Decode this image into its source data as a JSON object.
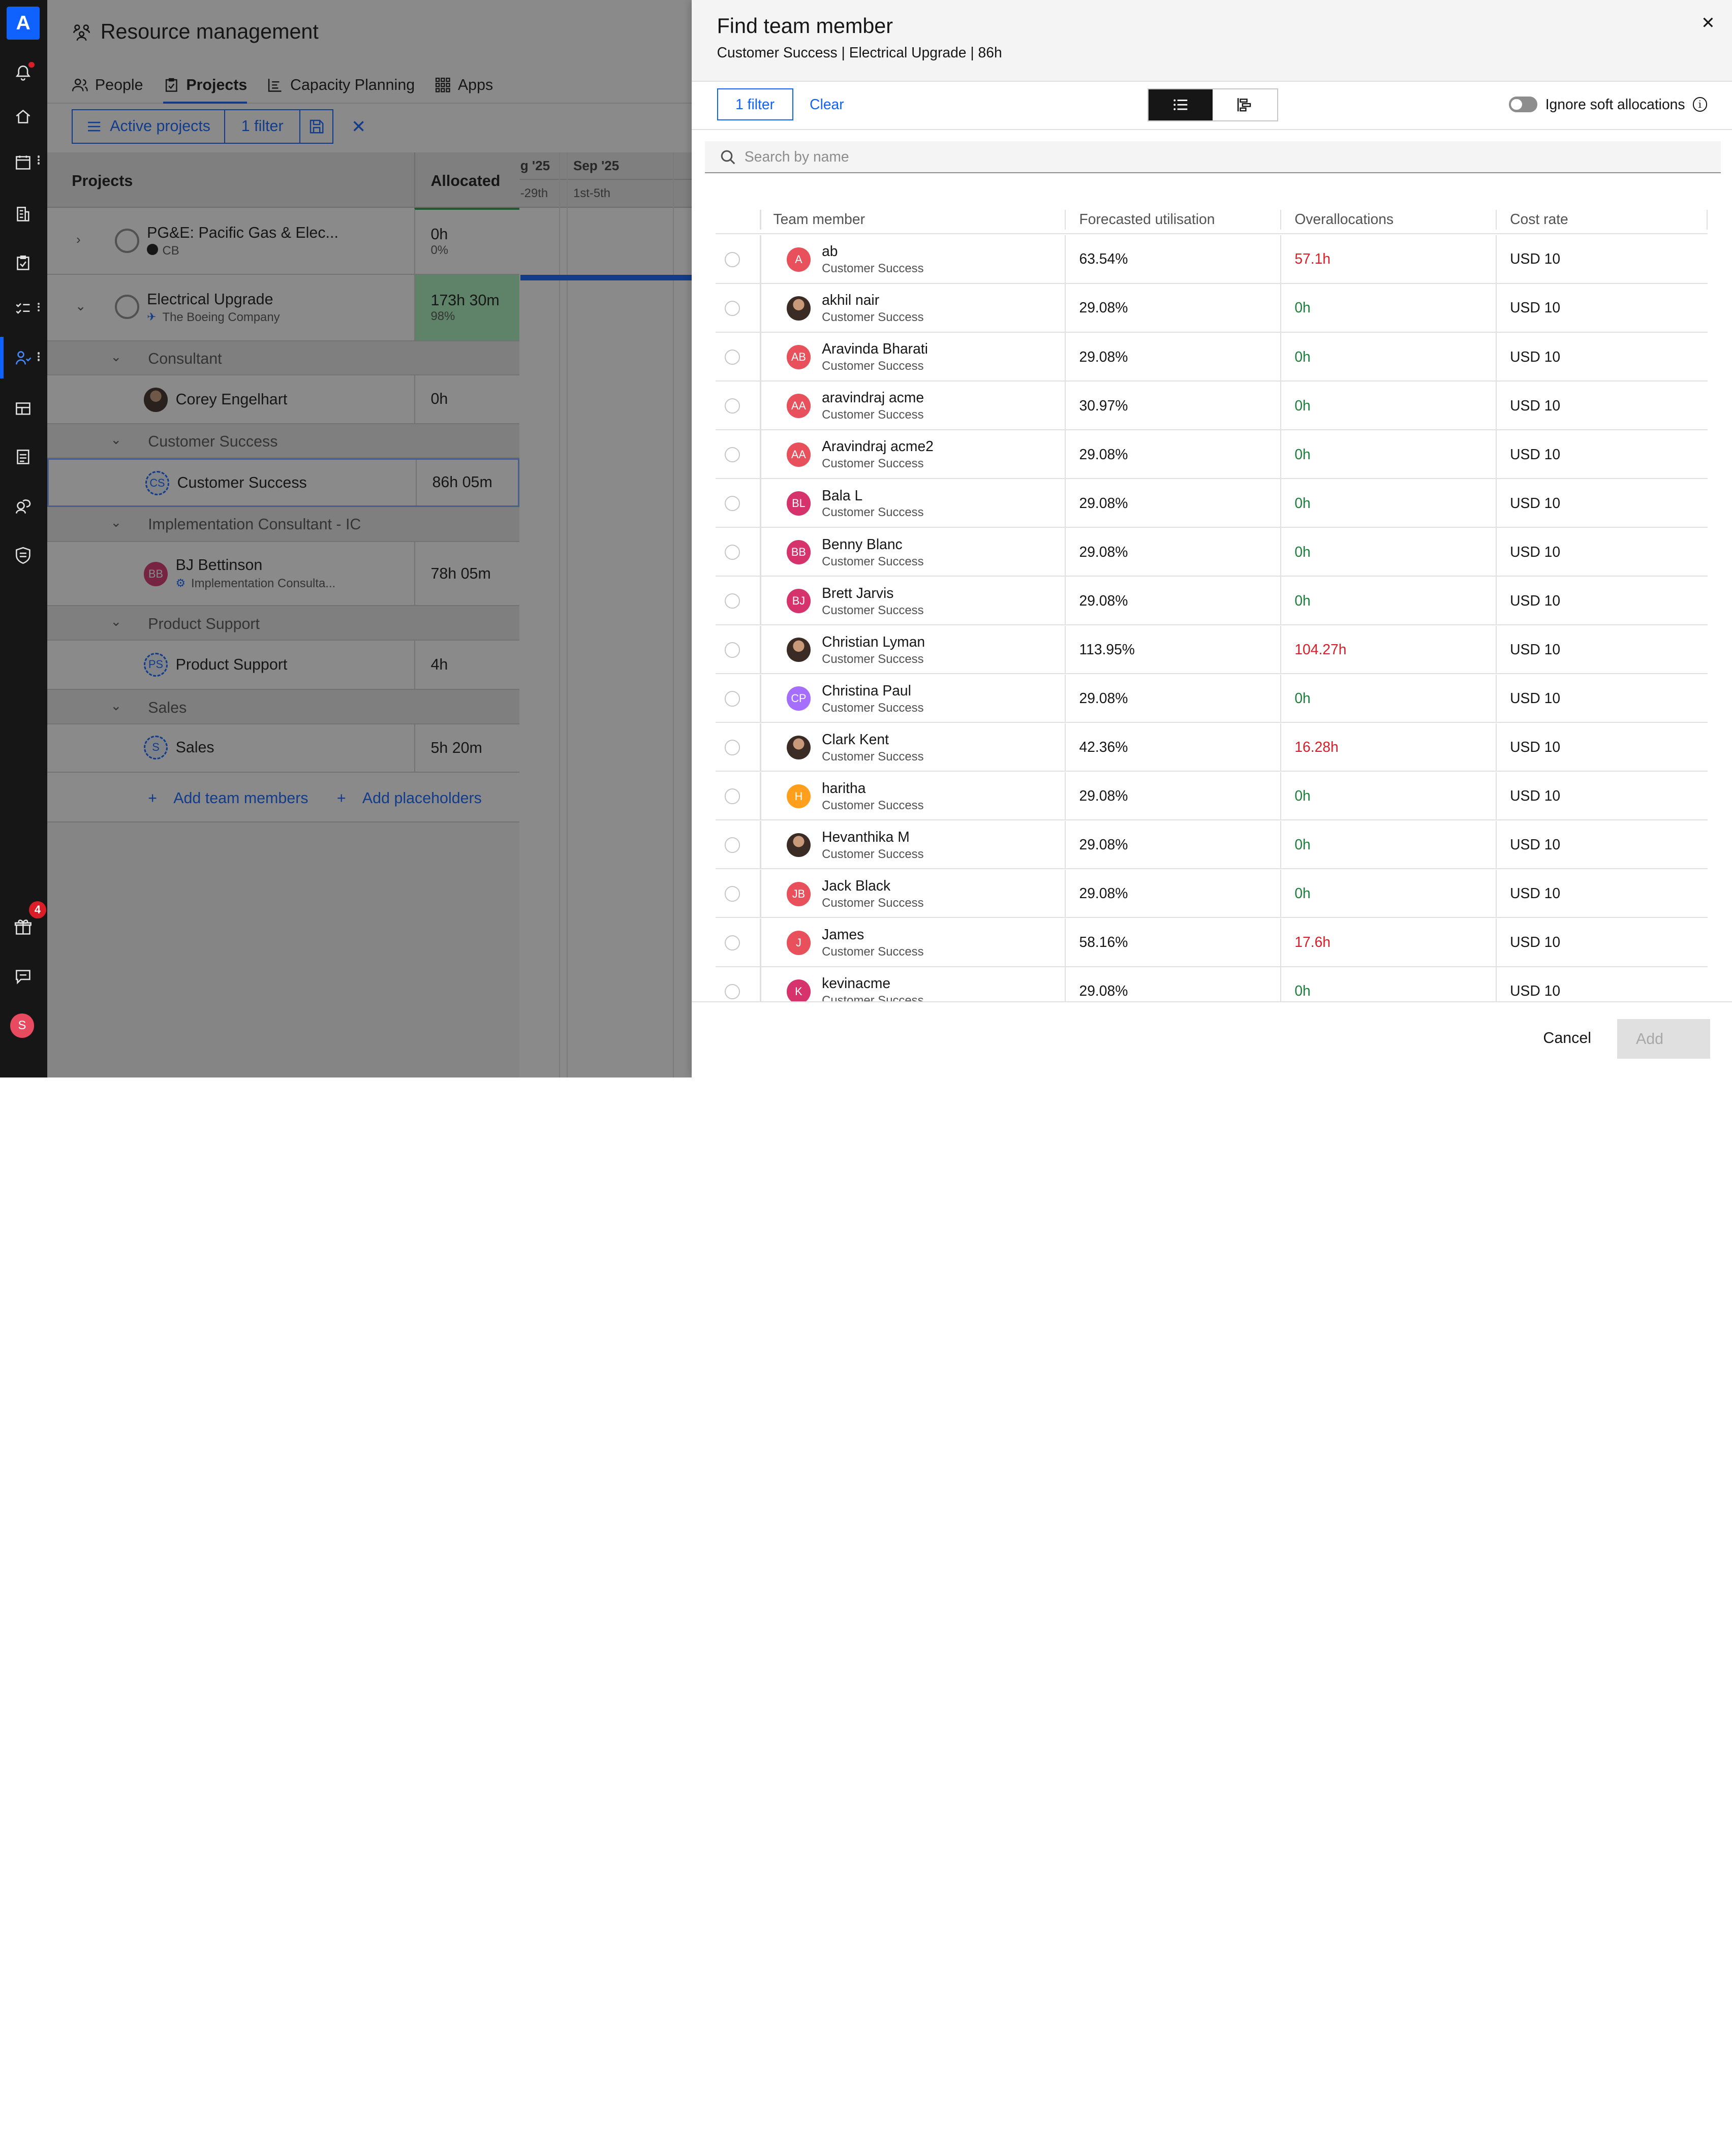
{
  "app": {
    "logo_letter": "A",
    "title": "Resource management",
    "tabs": [
      {
        "label": "People",
        "icon": "people-icon"
      },
      {
        "label": "Projects",
        "icon": "clipboard-icon"
      },
      {
        "label": "Capacity Planning",
        "icon": "capacity-icon"
      },
      {
        "label": "Apps",
        "icon": "apps-grid-icon"
      }
    ],
    "active_tab": "Projects",
    "toolbar": {
      "active_projects_label": "Active projects",
      "filter_label": "1 filter"
    },
    "grid": {
      "projects_header": "Projects",
      "allocated_header": "Allocated",
      "months": [
        "g '25",
        "Sep '25"
      ],
      "ranges": [
        "-29th",
        "1st-5th"
      ],
      "rows": [
        {
          "name": "PG&E: Pacific Gas & Elec...",
          "client": "CB",
          "alloc": "0h",
          "pct": "0%"
        },
        {
          "name": "Electrical Upgrade",
          "client": "The Boeing Company",
          "alloc": "173h 30m",
          "pct": "98%"
        },
        {
          "group": "Consultant"
        },
        {
          "name": "Corey Engelhart",
          "alloc": "0h"
        },
        {
          "group": "Customer Success"
        },
        {
          "name": "Customer Success",
          "initials": "CS",
          "alloc": "86h 05m"
        },
        {
          "group": "Implementation Consultant - IC"
        },
        {
          "name": "BJ Bettinson",
          "sub": "Implementation Consulta...",
          "initials": "BB",
          "alloc": "78h 05m"
        },
        {
          "group": "Product Support"
        },
        {
          "name": "Product Support",
          "initials": "PS",
          "alloc": "4h"
        },
        {
          "group": "Sales"
        },
        {
          "name": "Sales",
          "initials": "S",
          "alloc": "5h 20m"
        }
      ],
      "add_team_members": "Add team members",
      "add_placeholders": "Add placeholders"
    },
    "gift_badge_count": "4",
    "user_initial": "S"
  },
  "panel": {
    "title": "Find team member",
    "subtitle": "Customer Success | Electrical Upgrade | 86h",
    "filter_button": "1 filter",
    "clear_button": "Clear",
    "ignore_soft_label": "Ignore soft allocations",
    "search_placeholder": "Search by name",
    "columns": [
      "Team member",
      "Forecasted utilisation",
      "Overallocations",
      "Cost rate"
    ],
    "members": [
      {
        "name": "ab",
        "role": "Customer Success",
        "initials": "A",
        "avatar_color": "#e8505b",
        "util": "63.54%",
        "over": "57.1h",
        "over_state": "red",
        "cost": "USD 10"
      },
      {
        "name": "akhil nair",
        "role": "Customer Success",
        "photo": true,
        "util": "29.08%",
        "over": "0h",
        "over_state": "green",
        "cost": "USD 10"
      },
      {
        "name": "Aravinda Bharati",
        "role": "Customer Success",
        "initials": "AB",
        "avatar_color": "#e8505b",
        "util": "29.08%",
        "over": "0h",
        "over_state": "green",
        "cost": "USD 10"
      },
      {
        "name": "aravindraj acme",
        "role": "Customer Success",
        "initials": "AA",
        "avatar_color": "#e8505b",
        "util": "30.97%",
        "over": "0h",
        "over_state": "green",
        "cost": "USD 10"
      },
      {
        "name": "Aravindraj acme2",
        "role": "Customer Success",
        "initials": "AA",
        "avatar_color": "#e8505b",
        "util": "29.08%",
        "over": "0h",
        "over_state": "green",
        "cost": "USD 10"
      },
      {
        "name": "Bala L",
        "role": "Customer Success",
        "initials": "BL",
        "avatar_color": "#d6336c",
        "util": "29.08%",
        "over": "0h",
        "over_state": "green",
        "cost": "USD 10"
      },
      {
        "name": "Benny Blanc",
        "role": "Customer Success",
        "initials": "BB",
        "avatar_color": "#d6336c",
        "util": "29.08%",
        "over": "0h",
        "over_state": "green",
        "cost": "USD 10"
      },
      {
        "name": "Brett Jarvis",
        "role": "Customer Success",
        "initials": "BJ",
        "avatar_color": "#d6336c",
        "util": "29.08%",
        "over": "0h",
        "over_state": "green",
        "cost": "USD 10"
      },
      {
        "name": "Christian Lyman",
        "role": "Customer Success",
        "photo": true,
        "util": "113.95%",
        "over": "104.27h",
        "over_state": "red",
        "cost": "USD 10"
      },
      {
        "name": "Christina Paul",
        "role": "Customer Success",
        "initials": "CP",
        "avatar_color": "#a56eff",
        "util": "29.08%",
        "over": "0h",
        "over_state": "green",
        "cost": "USD 10"
      },
      {
        "name": "Clark Kent",
        "role": "Customer Success",
        "photo": true,
        "util": "42.36%",
        "over": "16.28h",
        "over_state": "red",
        "cost": "USD 10"
      },
      {
        "name": "haritha",
        "role": "Customer Success",
        "initials": "H",
        "avatar_color": "#ff9f1c",
        "util": "29.08%",
        "over": "0h",
        "over_state": "green",
        "cost": "USD 10"
      },
      {
        "name": "Hevanthika M",
        "role": "Customer Success",
        "photo": true,
        "util": "29.08%",
        "over": "0h",
        "over_state": "green",
        "cost": "USD 10"
      },
      {
        "name": "Jack Black",
        "role": "Customer Success",
        "initials": "JB",
        "avatar_color": "#e8505b",
        "util": "29.08%",
        "over": "0h",
        "over_state": "green",
        "cost": "USD 10"
      },
      {
        "name": "James",
        "role": "Customer Success",
        "initials": "J",
        "avatar_color": "#e8505b",
        "util": "58.16%",
        "over": "17.6h",
        "over_state": "red",
        "cost": "USD 10"
      },
      {
        "name": "kevinacme",
        "role": "Customer Success",
        "initials": "K",
        "avatar_color": "#d6336c",
        "util": "29.08%",
        "over": "0h",
        "over_state": "green",
        "cost": "USD 10"
      }
    ],
    "cancel_button": "Cancel",
    "add_button": "Add"
  }
}
